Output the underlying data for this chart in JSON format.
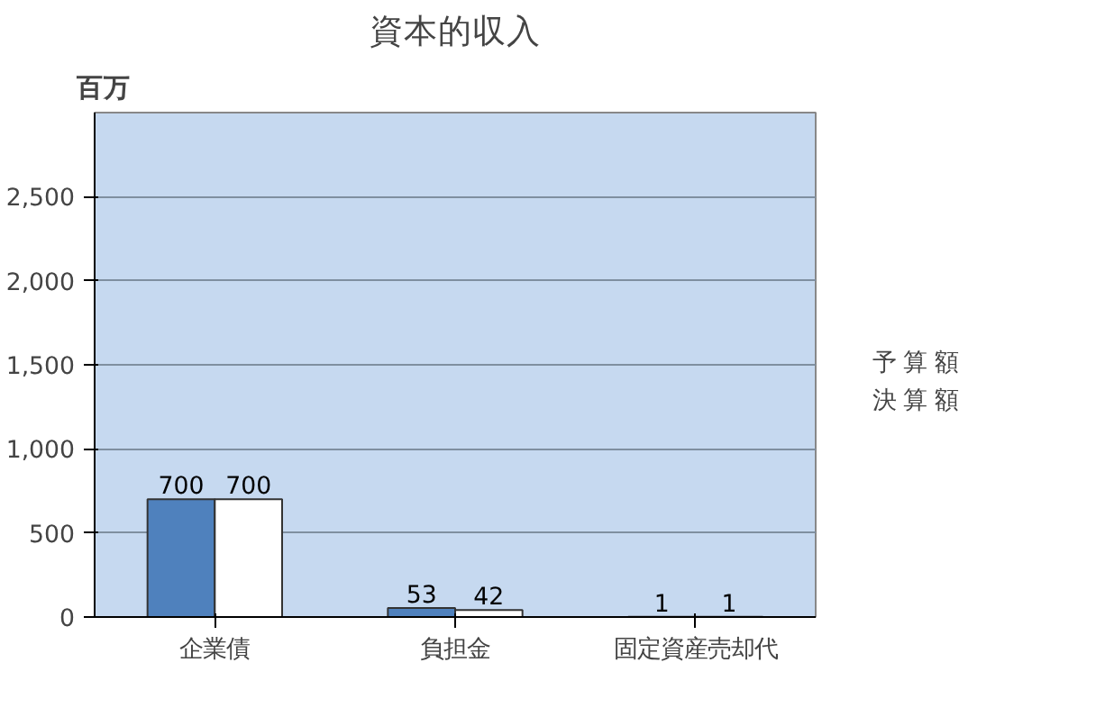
{
  "chart_data": {
    "type": "bar",
    "title": "資本的収入",
    "ylabel": "百万",
    "categories": [
      "企業債",
      "負担金",
      "固定資産売却代"
    ],
    "series": [
      {
        "name": "予 算 額",
        "color": "#4f81bd",
        "values": [
          700,
          53,
          1
        ]
      },
      {
        "name": "決 算 額",
        "color": "#ffffff",
        "values": [
          700,
          42,
          1
        ]
      }
    ],
    "ylim": [
      0,
      3000
    ],
    "yticks": [
      0,
      {
        "value": 500,
        "label": "500"
      },
      {
        "value": 1000,
        "label": "1,000"
      },
      {
        "value": 1500,
        "label": "1,500"
      },
      {
        "value": 2000,
        "label": "2,000"
      },
      {
        "value": 2500,
        "label": "2,500"
      }
    ],
    "grid": "y",
    "legend": "right",
    "data_labels": true
  }
}
